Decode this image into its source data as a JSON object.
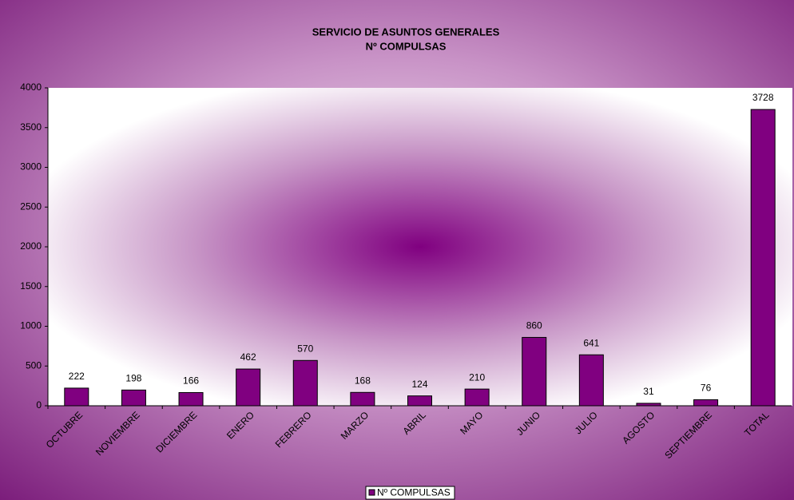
{
  "chart_data": {
    "type": "bar",
    "title": [
      "SERVICIO DE ASUNTOS GENERALES",
      "Nº COMPULSAS"
    ],
    "categories": [
      "OCTUBRE",
      "NOVIEMBRE",
      "DICIEMBRE",
      "ENERO",
      "FEBRERO",
      "MARZO",
      "ABRIL",
      "MAYO",
      "JUNIO",
      "JULIO",
      "AGOSTO",
      "SEPTIEMBRE",
      "TOTAL"
    ],
    "series": [
      {
        "name": "Nº COMPULSAS",
        "color": "#800080",
        "values": [
          222,
          198,
          166,
          462,
          570,
          168,
          124,
          210,
          860,
          641,
          31,
          76,
          3728
        ]
      }
    ],
    "ylim": [
      0,
      4000
    ],
    "yticks": [
      0,
      500,
      1000,
      1500,
      2000,
      2500,
      3000,
      3500,
      4000
    ],
    "grid": false,
    "legend": "bottom"
  }
}
